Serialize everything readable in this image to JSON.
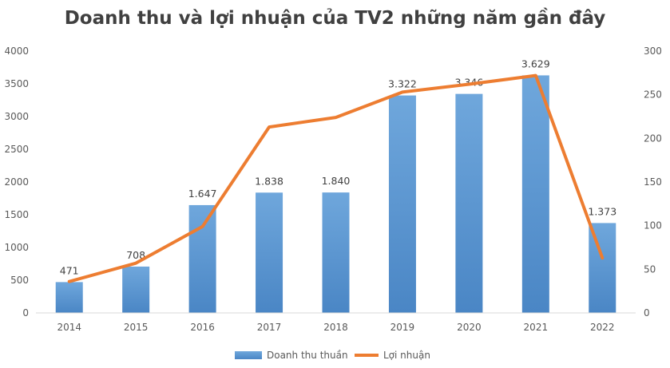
{
  "chart_data": {
    "type": "bar",
    "title": "Doanh thu và lợi nhuận của TV2 những năm gần đây",
    "categories": [
      "2014",
      "2015",
      "2016",
      "2017",
      "2018",
      "2019",
      "2020",
      "2021",
      "2022"
    ],
    "series": [
      {
        "name": "Doanh thu thuần",
        "type": "bar",
        "axis": "left",
        "color": "#5B9BD5",
        "values": [
          471,
          708,
          1647,
          1838,
          1840,
          3322,
          3346,
          3629,
          1373
        ],
        "labels": [
          "471",
          "708",
          "1.647",
          "1.838",
          "1.840",
          "3.322",
          "3.346",
          "3.629",
          "1.373"
        ]
      },
      {
        "name": "Lợi nhuận",
        "type": "line",
        "axis": "right",
        "color": "#ED7D31",
        "values": [
          36,
          57,
          99,
          213,
          224,
          253,
          262,
          272,
          63
        ]
      }
    ],
    "y_left": {
      "min": 0,
      "max": 4000,
      "step": 500,
      "ticks": [
        "0",
        "500",
        "1000",
        "1500",
        "2000",
        "2500",
        "3000",
        "3500",
        "4000"
      ]
    },
    "y_right": {
      "min": 0,
      "max": 300,
      "step": 50,
      "ticks": [
        "0",
        "50",
        "100",
        "150",
        "200",
        "250",
        "300"
      ]
    },
    "grid": false,
    "legend": "bottom"
  }
}
